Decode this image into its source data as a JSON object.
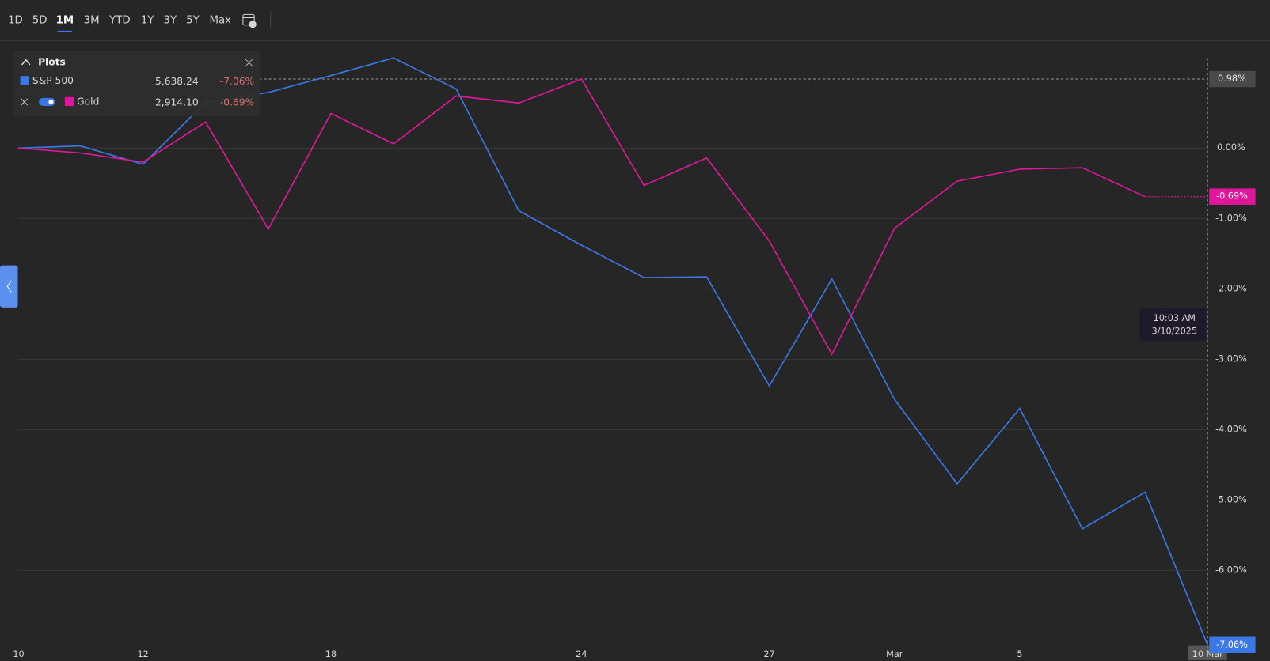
{
  "toolbar": {
    "ranges": [
      "1D",
      "5D",
      "1M",
      "3M",
      "YTD",
      "1Y",
      "3Y",
      "5Y",
      "Max"
    ],
    "selected": 2
  },
  "chart_data": {
    "type": "line",
    "legend_title": "Plots",
    "categories": [
      "10",
      null,
      "12",
      null,
      null,
      "18",
      null,
      null,
      null,
      "24",
      null,
      null,
      "27",
      null,
      "Mar",
      null,
      "5",
      null,
      null,
      "10 Mar"
    ],
    "series": [
      {
        "name": "S&P 500",
        "color": "#3b78e7",
        "price": "5,638.24",
        "change": "-7.06%",
        "end_value": -7.06,
        "end_label": "-7.06%",
        "values": [
          0,
          0.03,
          -0.23,
          0.65,
          0.79,
          1.03,
          1.28,
          0.84,
          -0.89,
          -1.38,
          -1.84,
          -1.83,
          -3.38,
          -1.86,
          -3.57,
          -4.77,
          -3.7,
          -5.41,
          -4.89,
          -7.06
        ]
      },
      {
        "name": "Gold",
        "color": "#e0179a",
        "price": "2,914.10",
        "change": "-0.69%",
        "end_value": -0.69,
        "end_label": "-0.69%",
        "values": [
          0,
          -0.07,
          -0.2,
          0.37,
          -1.15,
          0.49,
          0.06,
          0.74,
          0.64,
          0.98,
          -0.53,
          -0.14,
          -1.32,
          -2.93,
          -1.14,
          -0.47,
          -0.3,
          -0.28,
          -0.69,
          null
        ]
      }
    ],
    "max_marker": {
      "value": 0.98,
      "label": "0.98%"
    },
    "crosshair": {
      "time": "10:03 AM",
      "date": "3/10/2025"
    },
    "ylim": [
      -7.1,
      1.5
    ],
    "yticks": [
      {
        "value": 0,
        "label": "0.00%"
      },
      {
        "value": -1,
        "label": "-1.00%"
      },
      {
        "value": -2,
        "label": "-2.00%"
      },
      {
        "value": -3,
        "label": "-3.00%"
      },
      {
        "value": -4,
        "label": "-4.00%"
      },
      {
        "value": -5,
        "label": "-5.00%"
      },
      {
        "value": -6,
        "label": "-6.00%"
      }
    ],
    "grid": true
  }
}
